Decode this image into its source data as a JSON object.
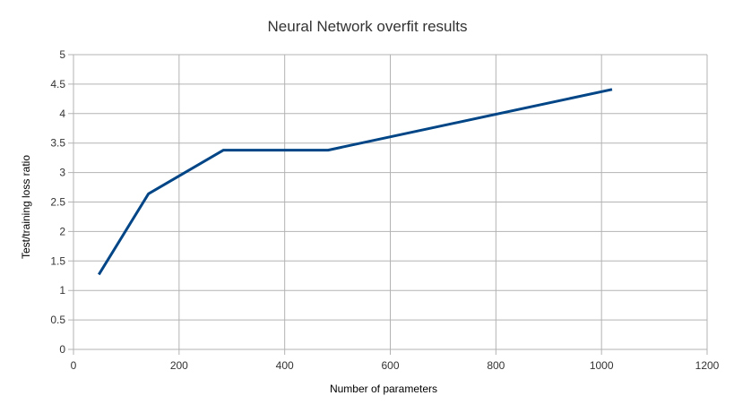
{
  "chart_data": {
    "type": "line",
    "title": "Neural Network overfit results",
    "xlabel": "Number of parameters",
    "ylabel": "Test/training loss ratio",
    "xlim": [
      0,
      1200
    ],
    "ylim": [
      0,
      5
    ],
    "xticks": [
      0,
      200,
      400,
      600,
      800,
      1000,
      1200
    ],
    "yticks": [
      0,
      0.5,
      1,
      1.5,
      2,
      2.5,
      3,
      3.5,
      4,
      4.5,
      5
    ],
    "xtick_labels": [
      "0",
      "200",
      "400",
      "600",
      "800",
      "1000",
      "1200"
    ],
    "ytick_labels": [
      "0",
      "0.5",
      "1",
      "1.5",
      "2",
      "2.5",
      "3",
      "3.5",
      "4",
      "4.5",
      "5"
    ],
    "grid": true,
    "legend": "none",
    "series": [
      {
        "color": "#004586",
        "x": [
          48,
          142,
          284,
          482,
          1020
        ],
        "y": [
          1.27,
          2.64,
          3.38,
          3.38,
          4.41
        ]
      }
    ]
  }
}
